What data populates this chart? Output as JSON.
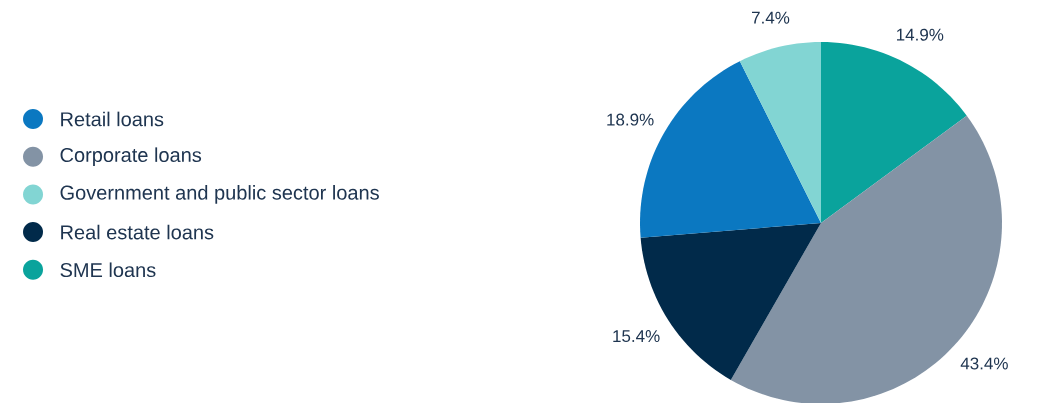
{
  "chart_data": {
    "type": "pie",
    "categories": [
      "SME loans",
      "Corporate loans",
      "Real estate loans",
      "Retail loans",
      "Government and public sector loans"
    ],
    "values": [
      14.9,
      43.4,
      15.4,
      18.9,
      7.4
    ],
    "value_labels": [
      "14.9%",
      "43.4%",
      "15.4%",
      "18.9%",
      "7.4%"
    ],
    "colors": [
      "#0aa39c",
      "#8393a5",
      "#012a4a",
      "#0b78c1",
      "#82d5d3"
    ],
    "legend": "left"
  }
}
